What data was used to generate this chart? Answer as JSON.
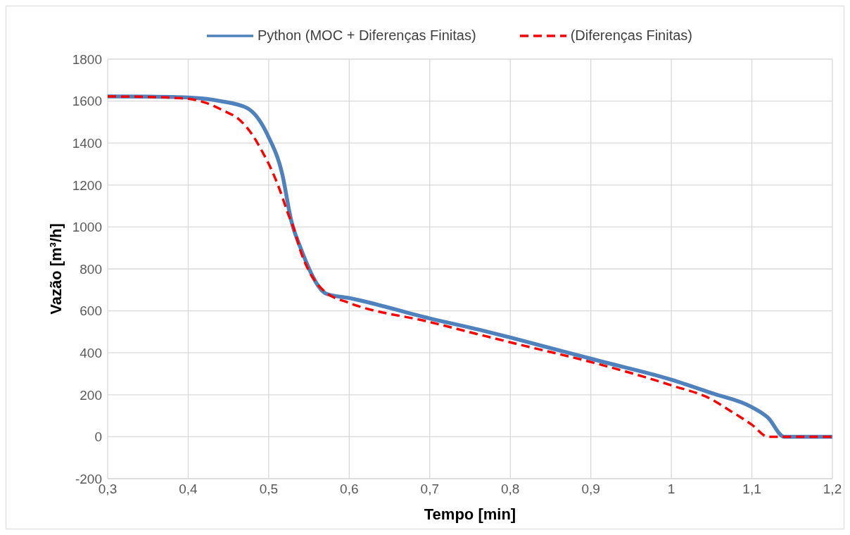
{
  "chart_data": {
    "type": "line",
    "xlabel": "Tempo [min]",
    "ylabel": "Vazão [m³/h]",
    "xlim": [
      0.3,
      1.2
    ],
    "xticks": [
      {
        "value": 0.3,
        "label": "0,3"
      },
      {
        "value": 0.4,
        "label": "0,4"
      },
      {
        "value": 0.5,
        "label": "0,5"
      },
      {
        "value": 0.6,
        "label": "0,6"
      },
      {
        "value": 0.7,
        "label": "0,7"
      },
      {
        "value": 0.8,
        "label": "0,8"
      },
      {
        "value": 0.9,
        "label": "0,9"
      },
      {
        "value": 1,
        "label": "1"
      },
      {
        "value": 1.1,
        "label": "1,1"
      },
      {
        "value": 1.2,
        "label": "1,2"
      }
    ],
    "ylim": [
      -200,
      1800
    ],
    "yticks": [
      -200,
      0,
      200,
      400,
      600,
      800,
      1000,
      1200,
      1400,
      1600,
      1800
    ],
    "grid": true,
    "legend": "top",
    "marker": "none",
    "series": [
      {
        "name": "Python (MOC + Diferenças Finitas)",
        "color": "#4f81bd",
        "line_style": "solid",
        "x": [
          0.3,
          0.35,
          0.4,
          0.44,
          0.473,
          0.4993,
          0.5168,
          0.528,
          0.54,
          0.572,
          0.6,
          0.7,
          0.7615,
          0.8,
          0.91,
          1.0,
          1.05,
          1.1,
          1.12,
          1.14,
          1.2
        ],
        "values": [
          1622,
          1621,
          1617,
          1600,
          1567,
          1433,
          1252,
          1030,
          896,
          681,
          661,
          564,
          510,
          473,
          362,
          272,
          208,
          141,
          91,
          0,
          0
        ]
      },
      {
        "name": "(Diferenças Finitas)",
        "color": "#ff0000",
        "line_style": "dashed",
        "x": [
          0.3,
          0.35,
          0.4,
          0.42,
          0.444,
          0.464,
          0.479,
          0.493,
          0.502,
          0.514,
          0.523,
          0.532,
          0.54,
          0.55,
          0.56,
          0.572,
          0.6,
          0.7,
          0.7615,
          0.8,
          0.91,
          1.0,
          1.05,
          1.073,
          1.1,
          1.12,
          1.2
        ],
        "values": [
          1622,
          1620,
          1611,
          1594,
          1554,
          1510,
          1443,
          1352,
          1285,
          1174,
          1074,
          983,
          880,
          790,
          730,
          685,
          638,
          547,
          487,
          450,
          346,
          245,
          178,
          124,
          57,
          0,
          0
        ]
      }
    ]
  }
}
